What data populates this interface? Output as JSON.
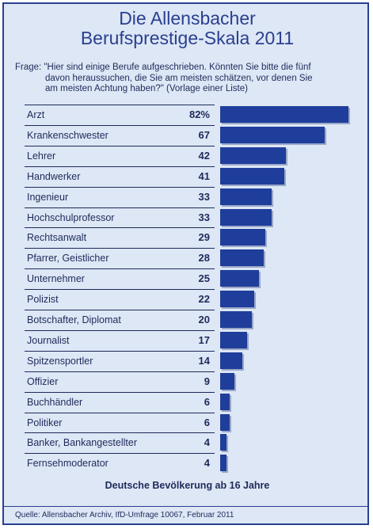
{
  "title_line1": "Die Allensbacher",
  "title_line2": "Berufsprestige-Skala 2011",
  "question": {
    "label": "Frage:",
    "line1": "\"Hier sind einige Berufe aufgeschrieben. Könnten Sie bitte die fünf",
    "line2": "davon heraussuchen, die Sie am meisten schätzen, vor denen Sie",
    "line3": "am meisten Achtung haben?\" (Vorlage einer Liste)"
  },
  "footer_note": "Deutsche Bevölkerung ab 16 Jahre",
  "source": "Quelle: Allensbacher Archiv, IfD-Umfrage 10067, Februar 2011",
  "colors": {
    "bar": "#1f3e9b",
    "frame": "#2a3f8f",
    "background": "#dde7f5"
  },
  "chart_data": {
    "type": "bar",
    "orientation": "horizontal",
    "categories": [
      "Arzt",
      "Krankenschwester",
      "Lehrer",
      "Handwerker",
      "Ingenieur",
      "Hochschulprofessor",
      "Rechtsanwalt",
      "Pfarrer, Geistlicher",
      "Unternehmer",
      "Polizist",
      "Botschafter, Diplomat",
      "Journalist",
      "Spitzensportler",
      "Offizier",
      "Buchhändler",
      "Politiker",
      "Banker, Bankangestellter",
      "Fernsehmoderator"
    ],
    "values": [
      82,
      67,
      42,
      41,
      33,
      33,
      29,
      28,
      25,
      22,
      20,
      17,
      14,
      9,
      6,
      6,
      4,
      4
    ],
    "value_labels": [
      "82%",
      "67",
      "42",
      "41",
      "33",
      "33",
      "29",
      "28",
      "25",
      "22",
      "20",
      "17",
      "14",
      "9",
      "6",
      "6",
      "4",
      "4"
    ],
    "xlim": [
      0,
      82
    ],
    "grid": false,
    "legend": "none"
  }
}
